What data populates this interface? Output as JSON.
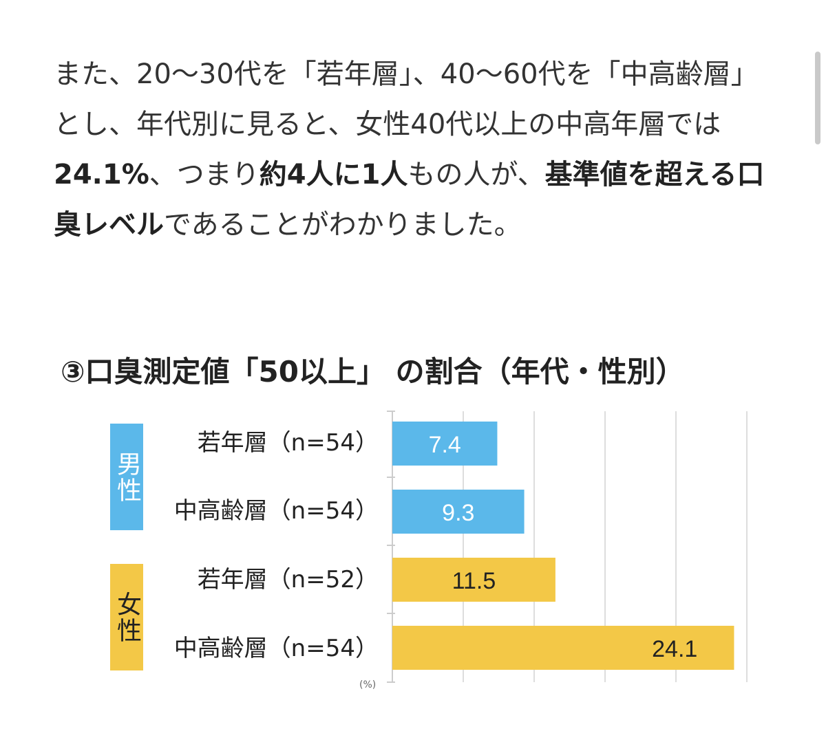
{
  "article": {
    "p1": "また、20〜30代を「若年層」、40〜60代を「中高齢層」とし、年代別に見ると、女性40代以上の中高年層では",
    "strong1": "24.1%",
    "p2": "、つまり",
    "strong2": "約4人に1人",
    "p3": "もの人が、",
    "strong3": "基準値を超える口臭レベル",
    "p4": "であることがわかりました。"
  },
  "chart_data": {
    "type": "bar",
    "orientation": "horizontal",
    "title": "③口臭測定値「50以上」 の割合（年代・性別）",
    "groups": [
      {
        "label": "男性",
        "color": "#5bb8ea"
      },
      {
        "label": "女性",
        "color": "#f3c847"
      }
    ],
    "categories": [
      "若年層（n=54）",
      "中高齢層（n=54）",
      "若年層（n=52）",
      "中高齢層（n=54）"
    ],
    "values": [
      7.4,
      9.3,
      11.5,
      24.1
    ],
    "value_labels": [
      "7.4",
      "9.3",
      "11.5",
      "24.1"
    ],
    "bar_groups": [
      "男性",
      "男性",
      "女性",
      "女性"
    ],
    "xlim": [
      0,
      25
    ],
    "grid": true,
    "footer_mark": "(%)"
  }
}
